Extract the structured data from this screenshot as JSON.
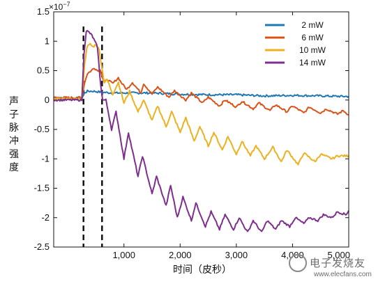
{
  "chart_data": {
    "type": "line",
    "title": "",
    "xlabel": "时间（皮秒）",
    "ylabel": "声子脉冲强度",
    "y_exponent_label": "×10",
    "y_exponent_power": "−7",
    "xlim": [
      -250,
      5000
    ],
    "ylim": [
      -2.5,
      1.5
    ],
    "x_ticks": [
      1000,
      2000,
      3000,
      4000,
      5000
    ],
    "x_tick_labels": [
      "1,000",
      "2,000",
      "3,000",
      "4,000",
      "5,000"
    ],
    "y_ticks": [
      -2.5,
      -2,
      -1.5,
      -1,
      -0.5,
      0,
      0.5,
      1,
      1.5
    ],
    "y_tick_labels": [
      "-2.5",
      "-2",
      "-1.5",
      "-1",
      "-0.5",
      "0",
      "0.5",
      "1",
      "1.5"
    ],
    "legend_position": "top-right",
    "markers": [
      {
        "style": "dashed",
        "x": 280
      },
      {
        "style": "dashed",
        "x": 610
      }
    ],
    "series": [
      {
        "name": "2 mW",
        "color": "#1f77b4",
        "x": [
          -250,
          250,
          300,
          350,
          450,
          550,
          650,
          800,
          1000,
          1500,
          2000,
          2500,
          3000,
          3500,
          4000,
          4500,
          5000
        ],
        "y": [
          0.03,
          0.03,
          0.12,
          0.15,
          0.15,
          0.14,
          0.13,
          0.12,
          0.12,
          0.12,
          0.1,
          0.09,
          0.09,
          0.07,
          0.08,
          0.07,
          0.06
        ]
      },
      {
        "name": "6 mW",
        "color": "#d95319",
        "x": [
          -250,
          250,
          300,
          350,
          420,
          470,
          530,
          580,
          620,
          650,
          700,
          800,
          900,
          950,
          1050,
          1150,
          1300,
          1350,
          1500,
          1600,
          1800,
          1900,
          2100,
          2200,
          2400,
          2500,
          2700,
          2800,
          3000,
          3100,
          3300,
          3400,
          3600,
          3700,
          3900,
          4000,
          4200,
          4300,
          4500,
          4600,
          4800,
          4900,
          5000
        ],
        "y": [
          0.04,
          0.04,
          0.3,
          0.45,
          0.5,
          0.55,
          0.5,
          0.52,
          0.38,
          0.3,
          0.35,
          0.28,
          0.38,
          0.3,
          0.18,
          0.3,
          0.12,
          0.28,
          0.1,
          0.22,
          0.05,
          0.16,
          0.0,
          0.12,
          -0.05,
          0.05,
          -0.1,
          0.0,
          -0.12,
          -0.02,
          -0.15,
          -0.05,
          -0.18,
          -0.08,
          -0.2,
          -0.1,
          -0.22,
          -0.12,
          -0.22,
          -0.15,
          -0.24,
          -0.18,
          -0.25
        ]
      },
      {
        "name": "10 mW",
        "color": "#edb120",
        "x": [
          -250,
          250,
          300,
          340,
          400,
          450,
          500,
          560,
          600,
          650,
          700,
          800,
          900,
          1000,
          1100,
          1250,
          1350,
          1500,
          1600,
          1750,
          1850,
          2000,
          2100,
          2250,
          2350,
          2500,
          2600,
          2750,
          2850,
          3000,
          3100,
          3250,
          3350,
          3500,
          3650,
          3800,
          3900,
          4100,
          4200,
          4400,
          4500,
          4700,
          4800,
          5000
        ],
        "y": [
          0.02,
          0.02,
          0.6,
          0.9,
          0.95,
          0.9,
          0.95,
          0.85,
          0.6,
          0.3,
          0.35,
          0.1,
          0.3,
          -0.05,
          0.15,
          -0.2,
          0.0,
          -0.35,
          -0.1,
          -0.45,
          -0.2,
          -0.55,
          -0.3,
          -0.7,
          -0.45,
          -0.78,
          -0.55,
          -0.85,
          -0.62,
          -0.92,
          -0.7,
          -0.95,
          -0.78,
          -1.0,
          -0.8,
          -1.05,
          -0.85,
          -1.1,
          -0.9,
          -1.05,
          -0.92,
          -1.0,
          -0.95,
          -0.95
        ]
      },
      {
        "name": "14 mW",
        "color": "#7e2f8e",
        "x": [
          -250,
          250,
          290,
          330,
          380,
          430,
          480,
          530,
          570,
          620,
          680,
          780,
          860,
          1000,
          1080,
          1250,
          1330,
          1500,
          1580,
          1750,
          1830,
          1950,
          2050,
          2200,
          2280,
          2450,
          2550,
          2700,
          2800,
          2950,
          3050,
          3200,
          3300,
          3450,
          3550,
          3700,
          3800,
          3950,
          4050,
          4200,
          4300,
          4450,
          4550,
          4700,
          4800,
          4950,
          5000
        ],
        "y": [
          0.0,
          0.0,
          0.8,
          1.18,
          1.15,
          1.1,
          1.0,
          0.9,
          0.4,
          0.0,
          0.0,
          -0.5,
          -0.2,
          -1.0,
          -0.55,
          -1.3,
          -0.95,
          -1.6,
          -1.3,
          -1.8,
          -1.45,
          -2.0,
          -1.65,
          -2.05,
          -1.75,
          -2.15,
          -1.9,
          -2.2,
          -1.95,
          -2.2,
          -2.0,
          -2.25,
          -2.05,
          -2.25,
          -2.05,
          -2.2,
          -2.05,
          -2.15,
          -2.0,
          -2.1,
          -2.0,
          -2.05,
          -1.95,
          -2.0,
          -1.9,
          -1.95,
          -1.88
        ]
      }
    ]
  },
  "watermark": {
    "text": "电子发烧友",
    "url": "www.elecfans.com"
  }
}
